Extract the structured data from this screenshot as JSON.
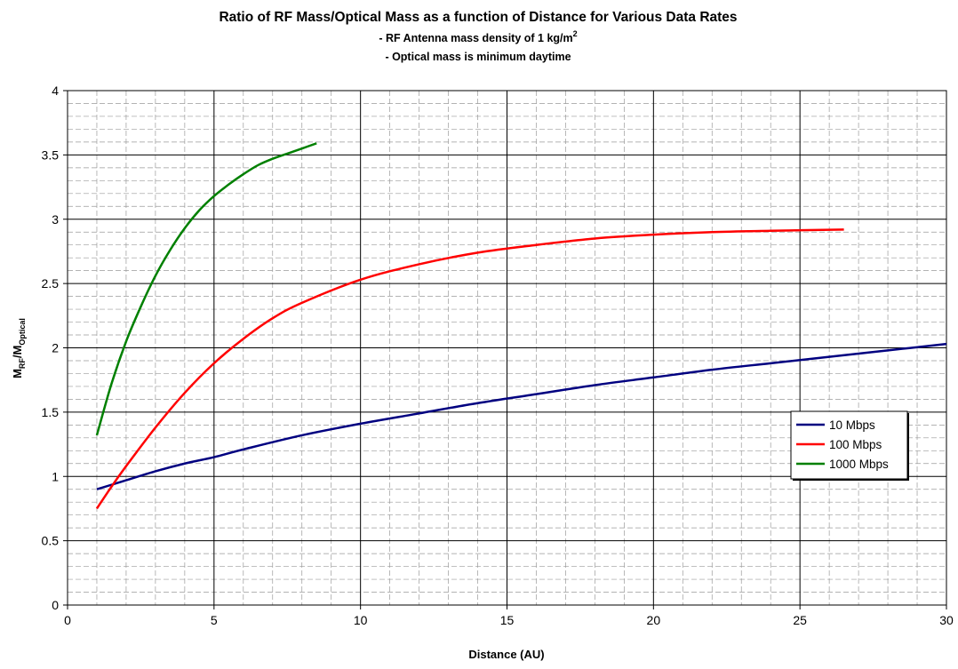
{
  "chart_data": {
    "type": "line",
    "title": "Ratio of RF Mass/Optical Mass as a function of Distance for Various Data Rates",
    "subtitles": [
      {
        "text": "- RF Antenna mass density of 1 kg/m",
        "sup": "2"
      },
      {
        "text": "- Optical mass is minimum daytime",
        "sup": ""
      }
    ],
    "xlabel": "Distance (AU)",
    "ylabel": {
      "main": "M",
      "sub1": "RF",
      "mid": "/M",
      "sub2": "Optical"
    },
    "xlim": [
      0,
      30
    ],
    "ylim": [
      0,
      4
    ],
    "x_ticks": [
      0,
      5,
      10,
      15,
      20,
      25,
      30
    ],
    "y_ticks": [
      0,
      0.5,
      1,
      1.5,
      2,
      2.5,
      3,
      3.5,
      4
    ],
    "x_tick_labels": [
      "0",
      "5",
      "10",
      "15",
      "20",
      "25",
      "30"
    ],
    "y_tick_labels": [
      "0",
      "0.5",
      "1",
      "1.5",
      "2",
      "2.5",
      "3",
      "3.5",
      "4"
    ],
    "grid": {
      "major": true,
      "minor": true
    },
    "legend_position": "right",
    "series": [
      {
        "name": "10 Mbps",
        "color": "#000080",
        "x": [
          1,
          2,
          3,
          4,
          5,
          6,
          8,
          10,
          12,
          14,
          16,
          18,
          20,
          22,
          24,
          26,
          28,
          30
        ],
        "y": [
          0.9,
          0.97,
          1.04,
          1.1,
          1.15,
          1.21,
          1.32,
          1.41,
          1.49,
          1.57,
          1.64,
          1.71,
          1.77,
          1.83,
          1.88,
          1.93,
          1.98,
          2.03
        ]
      },
      {
        "name": "100 Mbps",
        "color": "#ff0000",
        "x": [
          1,
          1.5,
          2,
          3,
          4,
          5,
          6,
          7,
          8,
          10,
          12,
          14,
          16,
          18,
          20,
          22,
          24,
          26.5
        ],
        "y": [
          0.75,
          0.92,
          1.08,
          1.38,
          1.65,
          1.88,
          2.07,
          2.23,
          2.35,
          2.53,
          2.65,
          2.74,
          2.8,
          2.85,
          2.88,
          2.9,
          2.91,
          2.92
        ]
      },
      {
        "name": "1000 Mbps",
        "color": "#008000",
        "x": [
          1,
          1.5,
          2,
          2.5,
          3,
          3.5,
          4,
          4.5,
          5,
          5.5,
          6,
          6.5,
          7,
          7.5,
          8,
          8.5
        ],
        "y": [
          1.32,
          1.72,
          2.05,
          2.32,
          2.56,
          2.76,
          2.93,
          3.07,
          3.18,
          3.27,
          3.35,
          3.42,
          3.47,
          3.51,
          3.55,
          3.59
        ]
      }
    ]
  }
}
